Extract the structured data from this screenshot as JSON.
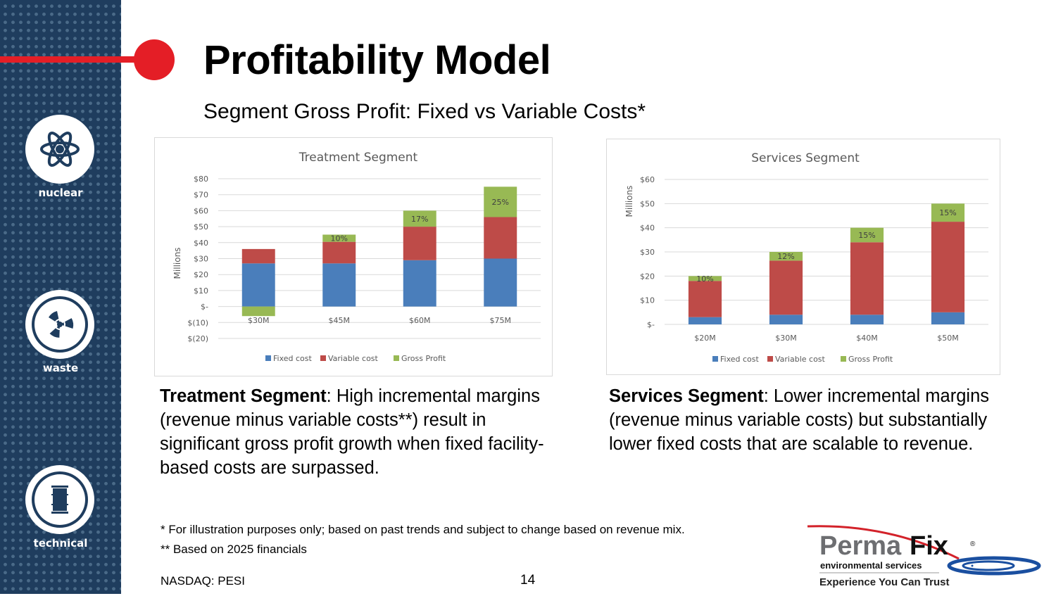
{
  "slide": {
    "title": "Profitability Model",
    "subtitle": "Segment Gross Profit: Fixed vs Variable Costs*",
    "page_number": "14",
    "ticker": "NASDAQ:  PESI"
  },
  "sidebar": {
    "items": [
      {
        "label": "nuclear",
        "icon": "atom-icon"
      },
      {
        "label": "waste",
        "icon": "radiation-icon"
      },
      {
        "label": "technical",
        "icon": "barrel-icon"
      }
    ]
  },
  "descriptions": {
    "treatment": {
      "bold": "Treatment Segment",
      "text": ": High incremental margins (revenue minus variable costs**) result in significant gross profit growth when fixed facility-based costs are surpassed."
    },
    "services": {
      "bold": "Services Segment",
      "text": ": Lower incremental margins (revenue minus variable costs) but substantially lower fixed costs that are scalable to revenue."
    }
  },
  "footnotes": {
    "note1": "*   For illustration purposes only; based on past trends and subject to change based on revenue mix.",
    "note2": "** Based on 2025 financials"
  },
  "logo": {
    "brand_part1": "Perma",
    "brand_part2": "Fix",
    "registered": "®",
    "line1": "environmental services",
    "tagline": "Experience You Can Trust"
  },
  "colors": {
    "fixed": "#4a7ebb",
    "variable": "#be4b48",
    "gross_profit": "#98b954",
    "accent_red": "#e41e26",
    "sidebar_navy": "#1f3d5e"
  },
  "chart_data": [
    {
      "type": "bar",
      "stacked": true,
      "title": "Treatment Segment",
      "xlabel": "",
      "ylabel": "Millions",
      "categories": [
        "$30M",
        "$45M",
        "$60M",
        "$75M"
      ],
      "series": [
        {
          "name": "Fixed cost",
          "values": [
            27,
            27,
            29,
            30
          ]
        },
        {
          "name": "Variable cost",
          "values": [
            9,
            13.5,
            21,
            26
          ]
        },
        {
          "name": "Gross Profit",
          "values": [
            -6,
            4.5,
            10,
            19
          ]
        }
      ],
      "data_labels": [
        "",
        "10%",
        "17%",
        "25%"
      ],
      "ylim": [
        -20,
        80
      ],
      "yticks": [
        80,
        70,
        60,
        50,
        40,
        30,
        20,
        10,
        0,
        -10,
        -20
      ],
      "ytick_labels": [
        "$80",
        "$70",
        "$60",
        "$50",
        "$40",
        "$30",
        "$20",
        "$10",
        "$-",
        "$(10)",
        "$(20)"
      ],
      "grid": true,
      "legend": "bottom"
    },
    {
      "type": "bar",
      "stacked": true,
      "title": "Services Segment",
      "xlabel": "",
      "ylabel": "Millions",
      "categories": [
        "$20M",
        "$30M",
        "$40M",
        "$50M"
      ],
      "series": [
        {
          "name": "Fixed cost",
          "values": [
            3,
            4,
            4,
            5
          ]
        },
        {
          "name": "Variable cost",
          "values": [
            15,
            22.4,
            30,
            37.5
          ]
        },
        {
          "name": "Gross Profit",
          "values": [
            2,
            3.6,
            6,
            7.5
          ]
        }
      ],
      "data_labels": [
        "10%",
        "12%",
        "15%",
        "15%"
      ],
      "ylim": [
        0,
        60
      ],
      "yticks": [
        60,
        50,
        40,
        30,
        20,
        10,
        0
      ],
      "ytick_labels": [
        "$60",
        "$50",
        "$40",
        "$30",
        "$20",
        "$10",
        "$-"
      ],
      "grid": true,
      "legend": "bottom"
    }
  ]
}
